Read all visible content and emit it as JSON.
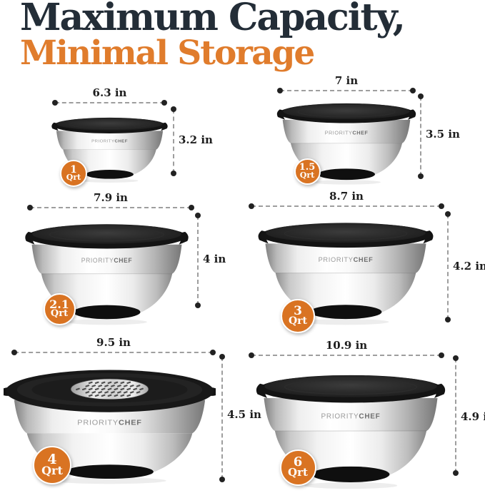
{
  "title": {
    "line1": "Maximum Capacity,",
    "line2": "Minimal Storage"
  },
  "brand_logo": {
    "prefix": "PRIORITY",
    "suffix": "CHEF"
  },
  "colors": {
    "title_dark": "#232d37",
    "accent_orange": "#e07c2c",
    "badge_orange": "#d97322",
    "dimension_text": "#1d1d1d",
    "dash_line": "#9e9e9e",
    "dot": "#222222",
    "lid_black": "#1a1a1a",
    "background": "#ffffff"
  },
  "bowls": [
    {
      "id": "1qrt",
      "width_label": "6.3 in",
      "height_label": "3.2 in",
      "capacity": "1",
      "unit": "Qrt",
      "grater_lid": false
    },
    {
      "id": "1-5qrt",
      "width_label": "7 in",
      "height_label": "3.5 in",
      "capacity": "1.5",
      "unit": "Qrt",
      "grater_lid": false
    },
    {
      "id": "2-1qrt",
      "width_label": "7.9 in",
      "height_label": "4 in",
      "capacity": "2.1",
      "unit": "Qrt",
      "grater_lid": false
    },
    {
      "id": "3qrt",
      "width_label": "8.7 in",
      "height_label": "4.2 in",
      "capacity": "3",
      "unit": "Qrt",
      "grater_lid": false
    },
    {
      "id": "4qrt",
      "width_label": "9.5 in",
      "height_label": "4.5 in",
      "capacity": "4",
      "unit": "Qrt",
      "grater_lid": true
    },
    {
      "id": "6qrt",
      "width_label": "10.9 in",
      "height_label": "4.9 in",
      "capacity": "6",
      "unit": "Qrt",
      "grater_lid": false
    }
  ]
}
